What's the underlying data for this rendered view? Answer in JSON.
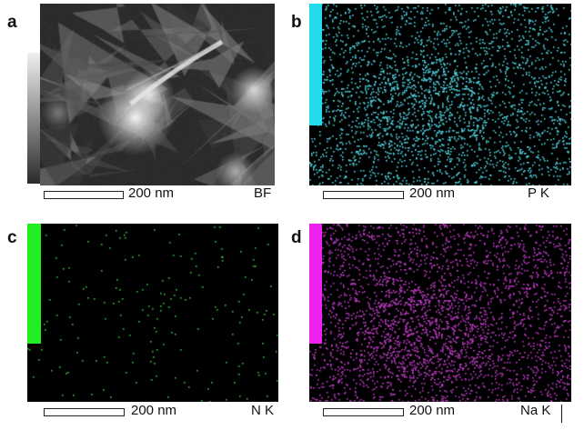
{
  "panels": [
    {
      "label": "a",
      "scale_bar": "200 nm",
      "channel": "BF",
      "image_kind": "bright-field-micrograph"
    },
    {
      "label": "b",
      "scale_bar": "200 nm",
      "channel": "P K",
      "image_kind": "element-map",
      "dot_color": "#4fd4e0",
      "bar_color": "#22dcec"
    },
    {
      "label": "c",
      "scale_bar": "200 nm",
      "channel": "N K",
      "image_kind": "element-map",
      "dot_color": "#36c23a",
      "bar_color": "#22ee22"
    },
    {
      "label": "d",
      "scale_bar": "200 nm",
      "channel": "Na K",
      "image_kind": "element-map",
      "dot_color": "#c03ac8",
      "bar_color": "#ee22ee"
    }
  ]
}
